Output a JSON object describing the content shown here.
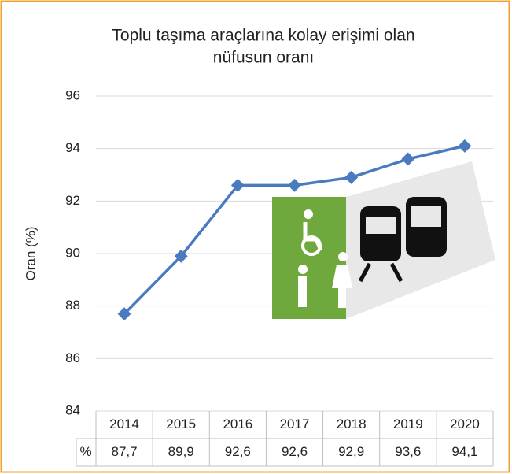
{
  "chart_data": {
    "type": "line",
    "title": [
      "Toplu taşıma araçlarına kolay erişimi olan",
      "nüfusun oranı"
    ],
    "y_label": "Oran (%)",
    "categories": [
      "2014",
      "2015",
      "2016",
      "2017",
      "2018",
      "2019",
      "2020"
    ],
    "series": [
      {
        "name": "%",
        "color": "#4a7bbf",
        "values": [
          87.7,
          89.9,
          92.6,
          92.6,
          92.9,
          93.6,
          94.1
        ],
        "value_labels": [
          "87,7",
          "89,9",
          "92,6",
          "92,6",
          "92,9",
          "93,6",
          "94,1"
        ]
      }
    ],
    "ylim": [
      84,
      96
    ],
    "yticks": [
      84,
      86,
      88,
      90,
      92,
      94,
      96
    ],
    "grid": true
  }
}
